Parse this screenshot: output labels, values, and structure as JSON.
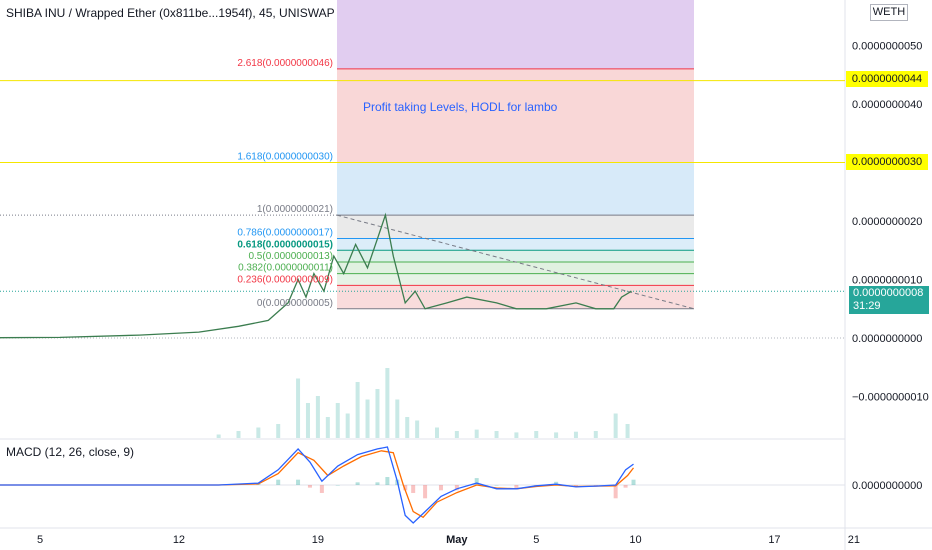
{
  "header": {
    "title": "SHIBA INU / Wrapped Ether (0x811be...1954f), 45, UNISWAP",
    "quote_label": "WETH"
  },
  "macd_title": "MACD (12, 26, close, 9)",
  "price_axis": {
    "ticks": [
      {
        "label": "0.0000000050",
        "value": 5e-09
      },
      {
        "label": "0.0000000040",
        "value": 4e-09
      },
      {
        "label": "0.0000000020",
        "value": 2e-09
      },
      {
        "label": "0.0000000010",
        "value": 1e-09
      },
      {
        "label": "0.0000000000",
        "value": 0.0
      },
      {
        "label": "−0.0000000010",
        "value": -1e-09
      }
    ],
    "macd_tick": "0.0000000000"
  },
  "horizontal_lines": [
    {
      "label": "0.0000000044",
      "value": 4.4e-09
    },
    {
      "label": "0.0000000030",
      "value": 3e-09
    }
  ],
  "current_price": {
    "label": "0.0000000008",
    "countdown": "31:29",
    "value": 8e-10,
    "color": "#26a69a"
  },
  "time_axis": {
    "ticks": [
      {
        "label": "5",
        "day": 5
      },
      {
        "label": "12",
        "day": 12
      },
      {
        "label": "19",
        "day": 19
      },
      {
        "label": "May",
        "day": 26
      },
      {
        "label": "5",
        "day": 30
      },
      {
        "label": "10",
        "day": 35
      },
      {
        "label": "17",
        "day": 42
      },
      {
        "label": "21",
        "day": 46
      }
    ]
  },
  "annotation": {
    "text": "Profit taking Levels, HODL for lambo",
    "color": "#2962ff"
  },
  "chart_data": {
    "type": "line",
    "fib_levels": [
      {
        "label": "2.618(0.0000000046)",
        "value": 4.6e-09,
        "color": "#f23645",
        "fill": "#f8d0d0"
      },
      {
        "label": "1.618(0.0000000030)",
        "value": 3e-09,
        "color": "#2196f3",
        "fill": "#d0e6f8"
      },
      {
        "label": "1(0.0000000021)",
        "value": 2.1e-09,
        "color": "#787b86",
        "fill": "#e6e6e6"
      },
      {
        "label": "0.786(0.0000000017)",
        "value": 1.7e-09,
        "color": "#2196f3",
        "fill": "#d6eaf8"
      },
      {
        "label": "0.618(0.0000000015)",
        "value": 1.5e-09,
        "color": "#089981",
        "fill": "#d7efe6"
      },
      {
        "label": "0.5(0.0000000013)",
        "value": 1.3e-09,
        "color": "#4caf50",
        "fill": "#dcefdc"
      },
      {
        "label": "0.382(0.0000000011)",
        "value": 1.1e-09,
        "color": "#4caf50",
        "fill": "#e2f1e2"
      },
      {
        "label": "0.236(0.0000000009)",
        "value": 9e-10,
        "color": "#f23645",
        "fill": "#f8d6d6"
      },
      {
        "label": "0(0.0000000005)",
        "value": 5e-10,
        "color": "#787b86",
        "fill": "none"
      }
    ],
    "top_zone_color": "#e1cdf0",
    "price_series": [
      [
        0,
        0.0
      ],
      [
        6,
        1e-11
      ],
      [
        10,
        5e-11
      ],
      [
        13,
        1e-10
      ],
      [
        15,
        2e-10
      ],
      [
        16.5,
        3e-10
      ],
      [
        17.5,
        6e-10
      ],
      [
        18,
        1e-09
      ],
      [
        18.4,
        7e-10
      ],
      [
        18.8,
        1.1e-09
      ],
      [
        19.3,
        8e-10
      ],
      [
        19.8,
        1.4e-09
      ],
      [
        20.3,
        1.1e-09
      ],
      [
        20.9,
        1.6e-09
      ],
      [
        21.5,
        1.2e-09
      ],
      [
        22,
        1.7e-09
      ],
      [
        22.4,
        2.1e-09
      ],
      [
        22.8,
        1.4e-09
      ],
      [
        23.1,
        1e-09
      ],
      [
        23.4,
        6e-10
      ],
      [
        23.9,
        8e-10
      ],
      [
        24.4,
        5e-10
      ],
      [
        25.5,
        6e-10
      ],
      [
        26.5,
        7e-10
      ],
      [
        28,
        6e-10
      ],
      [
        29,
        5e-10
      ],
      [
        30.5,
        5e-10
      ],
      [
        32,
        6e-10
      ],
      [
        33,
        5e-10
      ],
      [
        33.9,
        5e-10
      ],
      [
        34.3,
        7e-10
      ],
      [
        34.8,
        8e-10
      ]
    ],
    "volume_series": [
      [
        14,
        0.05
      ],
      [
        15,
        0.1
      ],
      [
        16,
        0.15
      ],
      [
        17,
        0.2
      ],
      [
        18,
        0.85
      ],
      [
        18.5,
        0.5
      ],
      [
        19,
        0.6
      ],
      [
        19.5,
        0.3
      ],
      [
        20,
        0.5
      ],
      [
        20.5,
        0.35
      ],
      [
        21,
        0.8
      ],
      [
        21.5,
        0.55
      ],
      [
        22,
        0.7
      ],
      [
        22.5,
        1.0
      ],
      [
        23,
        0.55
      ],
      [
        23.5,
        0.3
      ],
      [
        24,
        0.25
      ],
      [
        25,
        0.15
      ],
      [
        26,
        0.1
      ],
      [
        27,
        0.12
      ],
      [
        28,
        0.1
      ],
      [
        29,
        0.08
      ],
      [
        30,
        0.1
      ],
      [
        31,
        0.08
      ],
      [
        32,
        0.09
      ],
      [
        33,
        0.1
      ],
      [
        34,
        0.35
      ],
      [
        34.6,
        0.2
      ]
    ],
    "macd_series": [
      [
        0,
        0
      ],
      [
        14,
        0
      ],
      [
        16,
        0.05
      ],
      [
        17,
        0.4
      ],
      [
        18,
        0.95
      ],
      [
        18.6,
        0.6
      ],
      [
        19.2,
        0.1
      ],
      [
        20,
        0.5
      ],
      [
        21,
        0.8
      ],
      [
        22,
        0.95
      ],
      [
        22.5,
        1.0
      ],
      [
        23,
        0.1
      ],
      [
        23.4,
        -0.8
      ],
      [
        23.8,
        -1.0
      ],
      [
        24.4,
        -0.7
      ],
      [
        25.2,
        -0.3
      ],
      [
        26,
        -0.1
      ],
      [
        27,
        0.05
      ],
      [
        28,
        -0.1
      ],
      [
        29,
        -0.1
      ],
      [
        30,
        -0.02
      ],
      [
        31,
        0.02
      ],
      [
        32,
        -0.05
      ],
      [
        33,
        -0.03
      ],
      [
        34,
        0.0
      ],
      [
        34.5,
        0.4
      ],
      [
        34.9,
        0.55
      ]
    ],
    "signal_series": [
      [
        0,
        0
      ],
      [
        14,
        0
      ],
      [
        16,
        0.03
      ],
      [
        17,
        0.3
      ],
      [
        18,
        0.85
      ],
      [
        18.8,
        0.65
      ],
      [
        19.5,
        0.25
      ],
      [
        20.3,
        0.5
      ],
      [
        21.2,
        0.75
      ],
      [
        22.2,
        0.9
      ],
      [
        22.8,
        0.85
      ],
      [
        23.3,
        0.0
      ],
      [
        23.8,
        -0.7
      ],
      [
        24.3,
        -0.85
      ],
      [
        25,
        -0.45
      ],
      [
        26,
        -0.2
      ],
      [
        27,
        0.0
      ],
      [
        28,
        -0.08
      ],
      [
        29,
        -0.1
      ],
      [
        30,
        -0.04
      ],
      [
        31,
        0.0
      ],
      [
        32,
        -0.04
      ],
      [
        33,
        -0.03
      ],
      [
        34,
        -0.02
      ],
      [
        34.6,
        0.25
      ],
      [
        34.9,
        0.45
      ]
    ],
    "macd_color": "#2962ff",
    "signal_color": "#ff6d00",
    "up_color": "#26a69a",
    "down_color": "#ef5350"
  }
}
